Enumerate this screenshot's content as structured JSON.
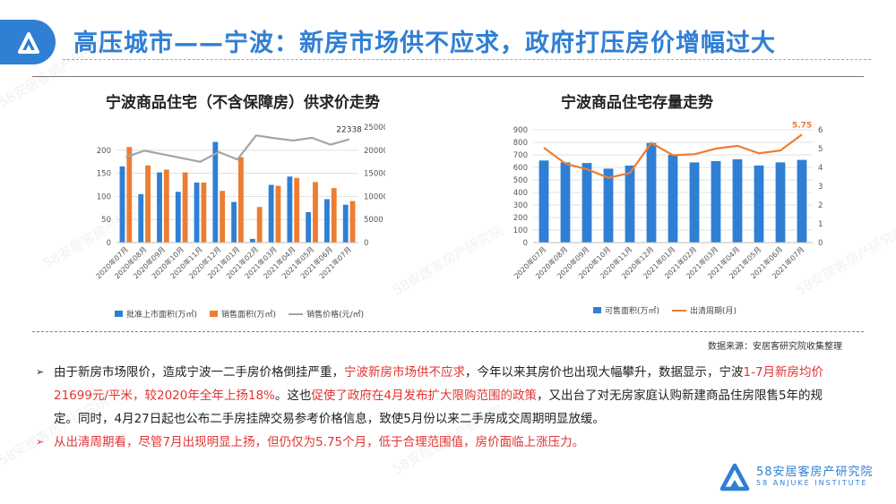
{
  "header": {
    "title": "高压城市——宁波：新房市场供不应求，政府打压房价增幅过大"
  },
  "watermark": "58安居客房产研究院",
  "source_note": "数据来源：安居客研究院收集整理",
  "brand": {
    "cn": "58安居客房产研究院",
    "en": "58 ANJUKE INSTITUTE"
  },
  "colors": {
    "blue": "#2f7fd4",
    "orange": "#ed7d31",
    "gray": "#a5a5a5",
    "red": "#e03434"
  },
  "paragraphs": [
    {
      "arrow": "➢",
      "parts": [
        {
          "text": "由于新房市场限价，造成宁波一二手房价格倒挂严重，",
          "color": ""
        },
        {
          "text": "宁波新房市场供不应求",
          "color": "red"
        },
        {
          "text": "，今年以来其房价也出现大幅攀升，数据显示，宁波",
          "color": ""
        },
        {
          "text": "1-7月新房均价21699元/平米，较2020年全年上扬18%",
          "color": "red"
        },
        {
          "text": "。这也",
          "color": ""
        },
        {
          "text": "促使了政府在4月发布扩大限购范围的政策",
          "color": "red"
        },
        {
          "text": "，又出台了对无房家庭认购新建商品住房限售5年的规定。同时，4月27日起也公布二手房挂牌交易参考价格信息，致使5月份以来二手房成交周期明显放缓。",
          "color": ""
        }
      ]
    },
    {
      "arrow": "➢",
      "parts": [
        {
          "text": "从出清周期看，尽管7月出现明显上扬，但仍仅为5.75个月，低于合理范围值，房价面临上涨压力。",
          "color": "red"
        }
      ]
    }
  ],
  "chart_data": [
    {
      "type": "bar",
      "title": "宁波商品住宅（不含保障房）供求价走势",
      "categories": [
        "2020年07月",
        "2020年08月",
        "2020年09月",
        "2020年10月",
        "2020年11月",
        "2020年12月",
        "2021年01月",
        "2021年02月",
        "2021年03月",
        "2021年04月",
        "2021年05月",
        "2021年06月",
        "2021年07月"
      ],
      "series": [
        {
          "name": "批准上市面积(万㎡)",
          "kind": "bar",
          "axis": "left",
          "color": "#2f7fd4",
          "values": [
            165,
            105,
            152,
            110,
            130,
            218,
            88,
            8,
            125,
            143,
            66,
            94,
            82
          ]
        },
        {
          "name": "销售面积(万㎡)",
          "kind": "bar",
          "axis": "left",
          "color": "#ed7d31",
          "values": [
            207,
            167,
            158,
            152,
            130,
            112,
            185,
            77,
            123,
            140,
            131,
            118,
            90
          ]
        },
        {
          "name": "销售价格(元/㎡)",
          "kind": "line",
          "axis": "right",
          "color": "#a5a5a5",
          "values": [
            18500,
            19900,
            19100,
            18300,
            17500,
            19600,
            18000,
            23200,
            22600,
            22100,
            22700,
            21200,
            22338
          ]
        }
      ],
      "ylim_left": [
        0,
        250
      ],
      "yticks_left": [
        0,
        50,
        100,
        150,
        200
      ],
      "ylim_right": [
        0,
        25000
      ],
      "yticks_right": [
        0,
        5000,
        10000,
        15000,
        20000,
        25000
      ],
      "annotations": [
        {
          "series": 2,
          "index": 12,
          "text": "22338"
        }
      ],
      "legend": "bottom",
      "grid": true
    },
    {
      "type": "bar",
      "title": "宁波商品住宅存量走势",
      "categories": [
        "2020年07月",
        "2020年08月",
        "2020年09月",
        "2020年10月",
        "2020年11月",
        "2020年12月",
        "2021年01月",
        "2021年02月",
        "2021年03月",
        "2021年04月",
        "2021年05月",
        "2021年06月",
        "2021年07月"
      ],
      "series": [
        {
          "name": "可售面积(万㎡)",
          "kind": "bar",
          "axis": "left",
          "color": "#2f7fd4",
          "values": [
            655,
            640,
            635,
            590,
            615,
            795,
            700,
            640,
            650,
            665,
            615,
            640,
            660
          ]
        },
        {
          "name": "出清周期(月)",
          "kind": "line",
          "axis": "right",
          "color": "#ed7d31",
          "values": [
            5.05,
            4.2,
            3.9,
            3.45,
            3.7,
            5.3,
            4.65,
            4.7,
            5.0,
            5.15,
            4.75,
            4.9,
            5.75
          ]
        }
      ],
      "ylim_left": [
        0,
        900
      ],
      "yticks_left": [
        0,
        100,
        200,
        300,
        400,
        500,
        600,
        700,
        800,
        900
      ],
      "ylim_right": [
        0,
        6
      ],
      "yticks_right": [
        0,
        1,
        2,
        3,
        4,
        5,
        6
      ],
      "annotations": [
        {
          "series": 1,
          "index": 12,
          "text": "5.75"
        }
      ],
      "legend": "bottom",
      "grid": true
    }
  ]
}
